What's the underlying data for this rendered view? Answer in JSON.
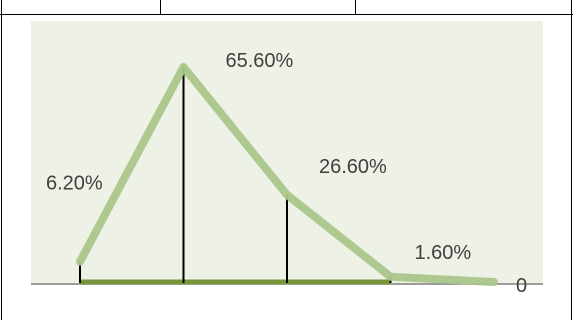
{
  "chart_data": {
    "type": "line",
    "title": "",
    "xlabel": "",
    "ylabel": "",
    "x": [
      1,
      2,
      3,
      4,
      5
    ],
    "series": [
      {
        "values": [
          6.2,
          65.6,
          26.6,
          1.6,
          0
        ]
      }
    ],
    "data_labels": [
      "6.20%",
      "65.60%",
      "26.60%",
      "1.60%"
    ],
    "axis_end_label": "0",
    "drop_lines": true,
    "ylim": [
      0,
      70
    ],
    "grid": false,
    "legend": "none",
    "colors": {
      "plot_area": "#eef1e6",
      "line": "#a9c68b",
      "baseline": "#77933c",
      "drop_lines": "#000000",
      "axis": "#808080",
      "label_text": "#404040",
      "border": "#000000"
    }
  }
}
